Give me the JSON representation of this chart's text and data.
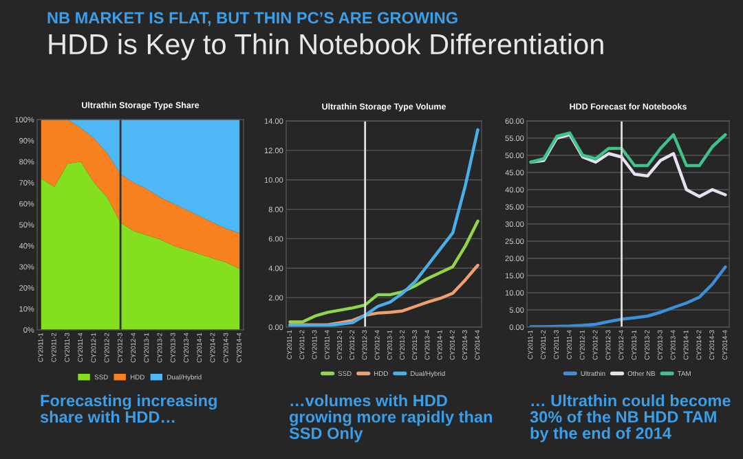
{
  "chart_data": [
    {
      "type": "other",
      "subtitle": "NB MARKET IS FLAT, BUT THIN PC’S ARE GROWING",
      "title": "HDD is Key to Thin Notebook Differentiation"
    },
    {
      "type": "area",
      "stacked": true,
      "title": "Ultrathin Storage Type Share",
      "categories": [
        "CY2011-1",
        "CY2011-2",
        "CY2011-3",
        "CY2011-4",
        "CY2012-1",
        "CY2012-2",
        "CY2012-3",
        "CY2012-4",
        "CY2013-1",
        "CY2013-2",
        "CY2013-3",
        "CY2013-4",
        "CY2014-1",
        "CY2014-2",
        "CY2014-3",
        "CY2014-4"
      ],
      "series": [
        {
          "name": "SSD",
          "color": "#84e01e",
          "values": [
            72,
            68,
            79,
            80,
            70,
            63,
            51,
            47,
            45,
            43,
            40,
            38,
            36,
            34,
            32,
            29
          ]
        },
        {
          "name": "HDD",
          "color": "#f7801f",
          "values": [
            28,
            32,
            21,
            16,
            21,
            21,
            23,
            23,
            22,
            20,
            20,
            19,
            18,
            17,
            16,
            17
          ]
        },
        {
          "name": "Dual/Hybrid",
          "color": "#4db8f5",
          "values": [
            0,
            0,
            0,
            4,
            9,
            16,
            26,
            30,
            33,
            37,
            40,
            43,
            46,
            49,
            52,
            54
          ]
        }
      ],
      "ylim": [
        0,
        100
      ],
      "yticks": [
        {
          "value": 0,
          "label": "0%"
        },
        {
          "value": 10,
          "label": "10%"
        },
        {
          "value": 20,
          "label": "20%"
        },
        {
          "value": 30,
          "label": "30%"
        },
        {
          "value": 40,
          "label": "40%"
        },
        {
          "value": 50,
          "label": "50%"
        },
        {
          "value": 60,
          "label": "60%"
        },
        {
          "value": 70,
          "label": "70%"
        },
        {
          "value": 80,
          "label": "80%"
        },
        {
          "value": 90,
          "label": "90%"
        },
        {
          "value": 100,
          "label": "100%"
        }
      ],
      "ref_lines": [
        {
          "axis": "x",
          "value": "CY2012-3",
          "color": "#333333"
        }
      ],
      "grid": false,
      "legend": "bottom",
      "annotations": [
        "Forecasting increasing\nshare with HDD…"
      ]
    },
    {
      "type": "line",
      "title": "Ultrathin Storage Type Volume",
      "categories": [
        "CY2011-1",
        "CY2011-2",
        "CY2011-3",
        "CY2011-4",
        "CY2012-1",
        "CY2012-2",
        "CY2012-3",
        "CY2012-4",
        "CY2013-1",
        "CY2013-2",
        "CY2013-3",
        "CY2013-4",
        "CY2014-1",
        "CY2014-2",
        "CY2014-3",
        "CY2014-4"
      ],
      "series": [
        {
          "name": "SSD",
          "color": "#8fd64a",
          "values": [
            0.35,
            0.35,
            0.75,
            1.0,
            1.15,
            1.3,
            1.5,
            2.2,
            2.2,
            2.4,
            2.8,
            3.3,
            3.7,
            4.1,
            5.5,
            7.2
          ]
        },
        {
          "name": "HDD",
          "color": "#f0a070",
          "values": [
            0.15,
            0.15,
            0.15,
            0.15,
            0.3,
            0.45,
            0.8,
            0.95,
            1.0,
            1.1,
            1.4,
            1.7,
            1.95,
            2.3,
            3.2,
            4.2
          ]
        },
        {
          "name": "Dual/Hybrid",
          "color": "#4aaee8",
          "values": [
            0.1,
            0.1,
            0.12,
            0.12,
            0.2,
            0.3,
            0.8,
            1.4,
            1.7,
            2.3,
            3.1,
            4.2,
            5.3,
            6.4,
            9.6,
            13.4
          ]
        }
      ],
      "ylim": [
        0,
        14
      ],
      "yticks": [
        {
          "value": 0,
          "label": "0.00"
        },
        {
          "value": 2,
          "label": "2.00"
        },
        {
          "value": 4,
          "label": "4.00"
        },
        {
          "value": 6,
          "label": "6.00"
        },
        {
          "value": 8,
          "label": "8.00"
        },
        {
          "value": 10,
          "label": "10.00"
        },
        {
          "value": 12,
          "label": "12.00"
        },
        {
          "value": 14,
          "label": "14.00"
        }
      ],
      "ref_lines": [
        {
          "axis": "x",
          "value": "CY2012-3",
          "color": "#e0e0e0"
        }
      ],
      "grid": "y",
      "legend": "bottom",
      "annotations": [
        "…volumes with HDD\ngrowing more rapidly than\nSSD Only"
      ]
    },
    {
      "type": "line",
      "title": "HDD Forecast for Notebooks",
      "categories": [
        "CY2011-1",
        "CY2011-2",
        "CY2011-3",
        "CY2011-4",
        "CY2012-1",
        "CY2012-2",
        "CY2012-3",
        "CY2012-4",
        "CY2013-1",
        "CY2013-2",
        "CY2013-3",
        "CY2013-4",
        "CY2014-1",
        "CY2014-2",
        "CY2014-3",
        "CY2014-4"
      ],
      "series": [
        {
          "name": "Ultrathin",
          "color": "#3d8fd9",
          "values": [
            0.1,
            0.1,
            0.2,
            0.3,
            0.5,
            0.8,
            1.6,
            2.3,
            2.7,
            3.2,
            4.3,
            5.7,
            7.0,
            8.7,
            12.5,
            17.5
          ]
        },
        {
          "name": "Other NB",
          "color": "#e6e0f0",
          "values": [
            48,
            48.5,
            55,
            56,
            49.5,
            48,
            50.5,
            49.5,
            44.5,
            44,
            48.5,
            50.5,
            40,
            38,
            40,
            38.5
          ]
        },
        {
          "name": "TAM",
          "color": "#3ec48a",
          "values": [
            48,
            49,
            55.5,
            56.5,
            50,
            49,
            52,
            52,
            47,
            47,
            52,
            56,
            47,
            47,
            52.5,
            56
          ]
        }
      ],
      "ylim": [
        0,
        60
      ],
      "yticks": [
        {
          "value": 0,
          "label": "0.00"
        },
        {
          "value": 5,
          "label": "5.00"
        },
        {
          "value": 10,
          "label": "10.00"
        },
        {
          "value": 15,
          "label": "15.00"
        },
        {
          "value": 20,
          "label": "20.00"
        },
        {
          "value": 25,
          "label": "25.00"
        },
        {
          "value": 30,
          "label": "30.00"
        },
        {
          "value": 35,
          "label": "35.00"
        },
        {
          "value": 40,
          "label": "40.00"
        },
        {
          "value": 45,
          "label": "45.00"
        },
        {
          "value": 50,
          "label": "50.00"
        },
        {
          "value": 55,
          "label": "55.00"
        },
        {
          "value": 60,
          "label": "60.00"
        }
      ],
      "ref_lines": [
        {
          "axis": "x",
          "value": "CY2012-4",
          "color": "#e0e0e0"
        }
      ],
      "grid": "y",
      "legend": "bottom",
      "annotations": [
        "… Ultrathin could become\n30% of the NB HDD TAM\nby the end of 2014"
      ]
    }
  ]
}
